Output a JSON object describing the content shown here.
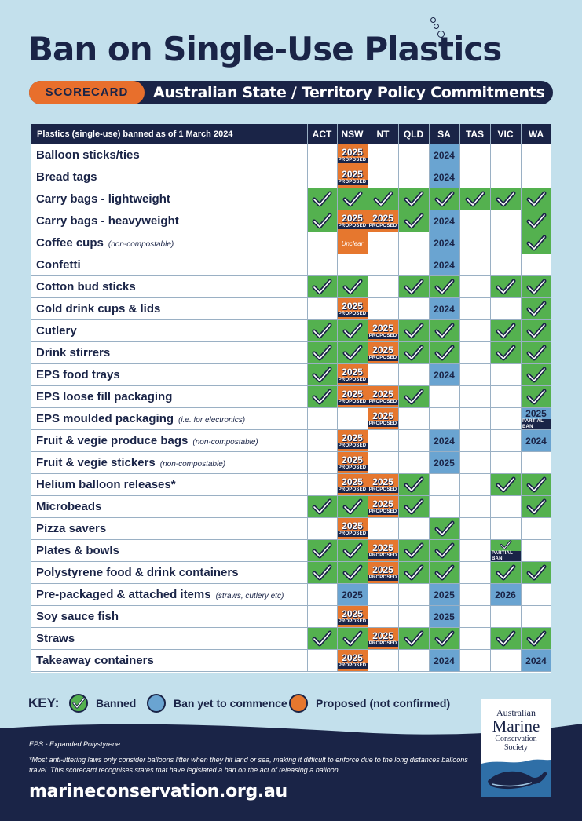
{
  "title": "Ban on Single-Use Plastics",
  "badge": "SCORECARD",
  "subtitle": "Australian State / Territory Policy Commitments",
  "table": {
    "header_label": "Plastics (single-use) banned as of 1 March 2024",
    "columns": [
      "ACT",
      "NSW",
      "NT",
      "QLD",
      "SA",
      "TAS",
      "VIC",
      "WA"
    ],
    "rows": [
      {
        "label": "Balloon sticks/ties",
        "note": "",
        "cells": [
          "",
          "P:2025:PROPOSED",
          "",
          "",
          "C:2024",
          "",
          "",
          ""
        ]
      },
      {
        "label": "Bread tags",
        "note": "",
        "cells": [
          "",
          "P:2025:PROPOSED",
          "",
          "",
          "C:2024",
          "",
          "",
          ""
        ]
      },
      {
        "label": "Carry bags - lightweight",
        "note": "",
        "cells": [
          "B",
          "B",
          "B",
          "B",
          "B",
          "B",
          "B",
          "B"
        ]
      },
      {
        "label": "Carry bags - heavyweight",
        "note": "",
        "cells": [
          "B",
          "P:2025:PROPOSED",
          "P:2025:PROPOSED",
          "B",
          "C:2024",
          "",
          "",
          "B"
        ]
      },
      {
        "label": "Coffee cups",
        "note": "(non-compostable)",
        "cells": [
          "",
          "U:Unclear",
          "",
          "",
          "C:2024",
          "",
          "",
          "B"
        ]
      },
      {
        "label": "Confetti",
        "note": "",
        "cells": [
          "",
          "",
          "",
          "",
          "C:2024",
          "",
          "",
          ""
        ]
      },
      {
        "label": "Cotton bud sticks",
        "note": "",
        "cells": [
          "B",
          "B",
          "",
          "B",
          "B",
          "",
          "B",
          "B"
        ]
      },
      {
        "label": "Cold drink cups & lids",
        "note": "",
        "cells": [
          "",
          "P:2025:PROPOSED",
          "",
          "",
          "C:2024",
          "",
          "",
          "B"
        ]
      },
      {
        "label": "Cutlery",
        "note": "",
        "cells": [
          "B",
          "B",
          "P:2025:PROPOSED",
          "B",
          "B",
          "",
          "B",
          "B"
        ]
      },
      {
        "label": "Drink stirrers",
        "note": "",
        "cells": [
          "B",
          "B",
          "P:2025:PROPOSED",
          "B",
          "B",
          "",
          "B",
          "B"
        ]
      },
      {
        "label": "EPS food trays",
        "note": "",
        "cells": [
          "B",
          "P:2025:PROPOSED",
          "",
          "",
          "C:2024",
          "",
          "",
          "B"
        ]
      },
      {
        "label": "EPS loose fill packaging",
        "note": "",
        "cells": [
          "B",
          "P:2025:PROPOSED",
          "P:2025:PROPOSED",
          "B",
          "",
          "",
          "",
          "B"
        ]
      },
      {
        "label": "EPS moulded packaging",
        "note": "(i.e. for electronics)",
        "cells": [
          "",
          "",
          "P:2025:PROPOSED",
          "",
          "",
          "",
          "",
          "C:2025:PARTIAL BAN"
        ]
      },
      {
        "label": "Fruit & vegie produce bags",
        "note": "(non-compostable)",
        "cells": [
          "",
          "P:2025:PROPOSED",
          "",
          "",
          "C:2024",
          "",
          "",
          "C:2024"
        ]
      },
      {
        "label": "Fruit & vegie stickers",
        "note": "(non-compostable)",
        "cells": [
          "",
          "P:2025:PROPOSED",
          "",
          "",
          "C:2025",
          "",
          "",
          ""
        ]
      },
      {
        "label": "Helium balloon releases*",
        "note": "",
        "cells": [
          "",
          "P:2025:PROPOSED",
          "P:2025:PROPOSED",
          "B",
          "",
          "",
          "B",
          "B"
        ]
      },
      {
        "label": "Microbeads",
        "note": "",
        "cells": [
          "B",
          "B",
          "P:2025:PROPOSED",
          "B",
          "",
          "",
          "",
          "B"
        ]
      },
      {
        "label": "Pizza savers",
        "note": "",
        "cells": [
          "",
          "P:2025:PROPOSED",
          "",
          "",
          "B",
          "",
          "",
          ""
        ]
      },
      {
        "label": "Plates & bowls",
        "note": "",
        "cells": [
          "B",
          "B",
          "P:2025:PROPOSED",
          "B",
          "B",
          "",
          "B:PARTIAL BAN",
          ""
        ]
      },
      {
        "label": "Polystyrene food & drink containers",
        "note": "",
        "cells": [
          "B",
          "B",
          "P:2025:PROPOSED",
          "B",
          "B",
          "",
          "B",
          "B"
        ]
      },
      {
        "label": "Pre-packaged & attached items",
        "note": "(straws, cutlery etc)",
        "cells": [
          "",
          "C:2025",
          "",
          "",
          "C:2025",
          "",
          "C:2026",
          ""
        ]
      },
      {
        "label": "Soy sauce fish",
        "note": "",
        "cells": [
          "",
          "P:2025:PROPOSED",
          "",
          "",
          "C:2025",
          "",
          "",
          ""
        ]
      },
      {
        "label": "Straws",
        "note": "",
        "cells": [
          "B",
          "B",
          "P:2025:PROPOSED",
          "B",
          "B",
          "",
          "B",
          "B"
        ]
      },
      {
        "label": "Takeaway containers",
        "note": "",
        "cells": [
          "",
          "P:2025:PROPOSED",
          "",
          "",
          "C:2024",
          "",
          "",
          "C:2024"
        ]
      }
    ]
  },
  "key": {
    "label": "KEY:",
    "items": [
      {
        "text": "Banned",
        "kind": "banned"
      },
      {
        "text": "Ban yet to commence",
        "kind": "commence"
      },
      {
        "text": "Proposed (not confirmed)",
        "kind": "proposed"
      }
    ]
  },
  "logo": {
    "line1": "Australian",
    "line2": "Marine",
    "line3": "Conservation",
    "line4": "Society"
  },
  "footnotes": {
    "eps": "EPS - Expanded Polystyrene",
    "balloon": "*Most anti-littering laws only consider balloons litter when they hit land or sea, making it difficult to enforce due to the long distances balloons travel. This scorecard recognises states that have legislated a ban on the act of releasing a balloon."
  },
  "website": "marineconservation.org.au",
  "colors": {
    "navy": "#1a2447",
    "banned": "#54b14f",
    "commence": "#6aa4d1",
    "proposed": "#e6772e",
    "background": "#c3e0ec"
  }
}
